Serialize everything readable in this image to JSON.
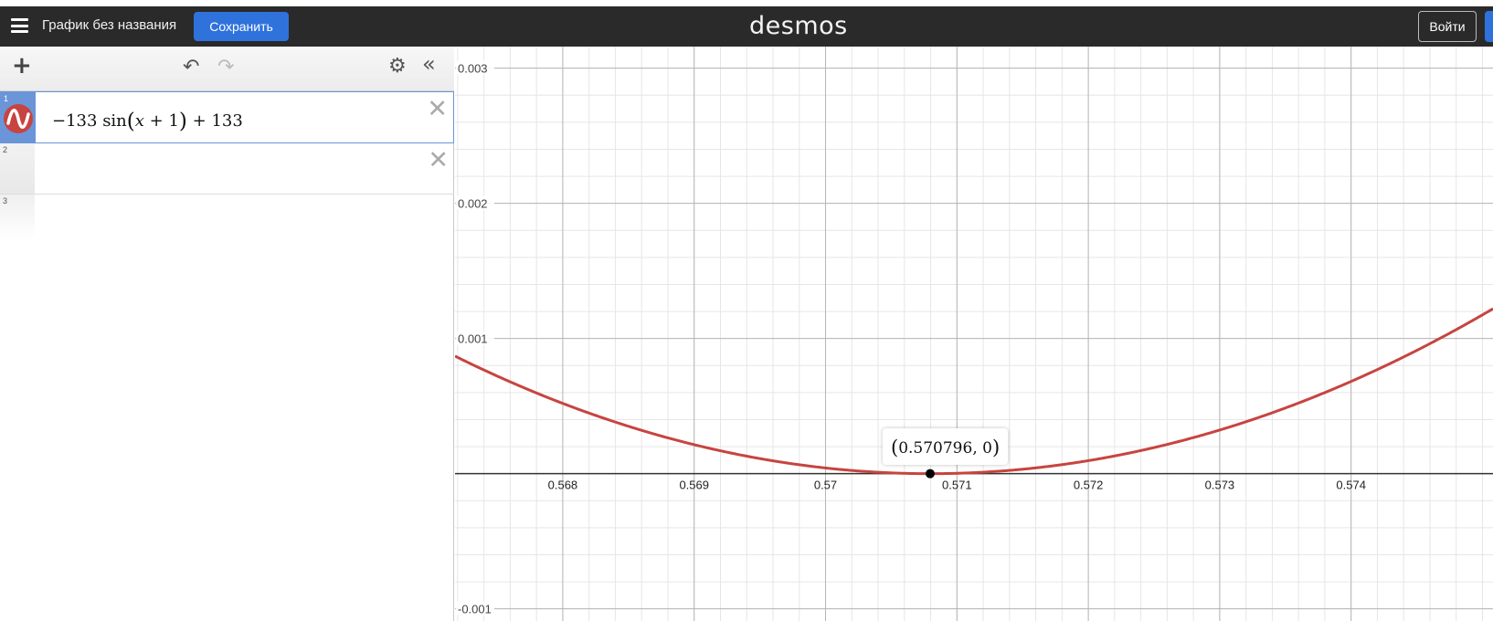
{
  "topbar": {
    "graph_title": "График без названия",
    "save_label": "Сохранить",
    "logo": "desmos",
    "login_label": "Войти"
  },
  "toolbar": {
    "icons": [
      "add-icon",
      "undo-icon",
      "redo-icon",
      "settings-icon",
      "collapse-icon"
    ]
  },
  "expressions": [
    {
      "number": "1",
      "parts": {
        "minus": "−133",
        "fn": "sin",
        "var": "x",
        "plus_inner": "+ 1",
        "plus_outer": "+ 133"
      },
      "color": "#c74440",
      "active": true
    },
    {
      "number": "2",
      "active": false
    },
    {
      "number": "3",
      "active": false
    }
  ],
  "graph": {
    "x_ticks": [
      "0.568",
      "0.569",
      "0.57",
      "0.571",
      "0.572",
      "0.573",
      "0.574"
    ],
    "y_ticks": [
      "0.003",
      "0.002",
      "0.001",
      "-0.001"
    ],
    "x_range": [
      0.56718,
      0.57508
    ],
    "y_range": [
      -0.00109,
      0.00316
    ],
    "curve_color": "#c74440",
    "point": {
      "label_x": "0.570796",
      "label_y": "0",
      "x": 0.570796,
      "y": 0
    }
  }
}
